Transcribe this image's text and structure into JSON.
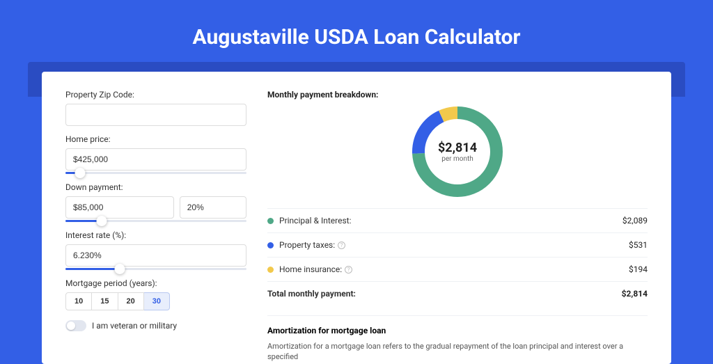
{
  "page": {
    "title": "Augustaville USDA Loan Calculator",
    "background_color": "#335fe6",
    "header_strip_color": "#2a4cc2",
    "card_bg": "#ffffff"
  },
  "form": {
    "zip": {
      "label": "Property Zip Code:",
      "value": ""
    },
    "home_price": {
      "label": "Home price:",
      "value": "$425,000",
      "slider_pct": 8
    },
    "down_payment": {
      "label": "Down payment:",
      "amount": "$85,000",
      "percent": "20%",
      "slider_pct": 20
    },
    "interest_rate": {
      "label": "Interest rate (%):",
      "value": "6.230%",
      "slider_pct": 30
    },
    "period": {
      "label": "Mortgage period (years):",
      "options": [
        "10",
        "15",
        "20",
        "30"
      ],
      "selected": "30"
    },
    "veteran": {
      "label": "I am veteran or military",
      "checked": false
    }
  },
  "breakdown": {
    "title": "Monthly payment breakdown:",
    "center_amount": "$2,814",
    "center_sub": "per month",
    "donut": {
      "segments": [
        {
          "key": "pi",
          "label": "Principal & Interest:",
          "value": "$2,089",
          "amount": 2089,
          "color": "#4fa887",
          "info": false
        },
        {
          "key": "taxes",
          "label": "Property taxes:",
          "value": "$531",
          "amount": 531,
          "color": "#335fe6",
          "info": true
        },
        {
          "key": "insurance",
          "label": "Home insurance:",
          "value": "$194",
          "amount": 194,
          "color": "#f2c94c",
          "info": true
        }
      ],
      "total_amount": 2814,
      "stroke_width": 18,
      "radius": 56
    },
    "total": {
      "label": "Total monthly payment:",
      "value": "$2,814"
    }
  },
  "amortization": {
    "title": "Amortization for mortgage loan",
    "text": "Amortization for a mortgage loan refers to the gradual repayment of the loan principal and interest over a specified"
  }
}
